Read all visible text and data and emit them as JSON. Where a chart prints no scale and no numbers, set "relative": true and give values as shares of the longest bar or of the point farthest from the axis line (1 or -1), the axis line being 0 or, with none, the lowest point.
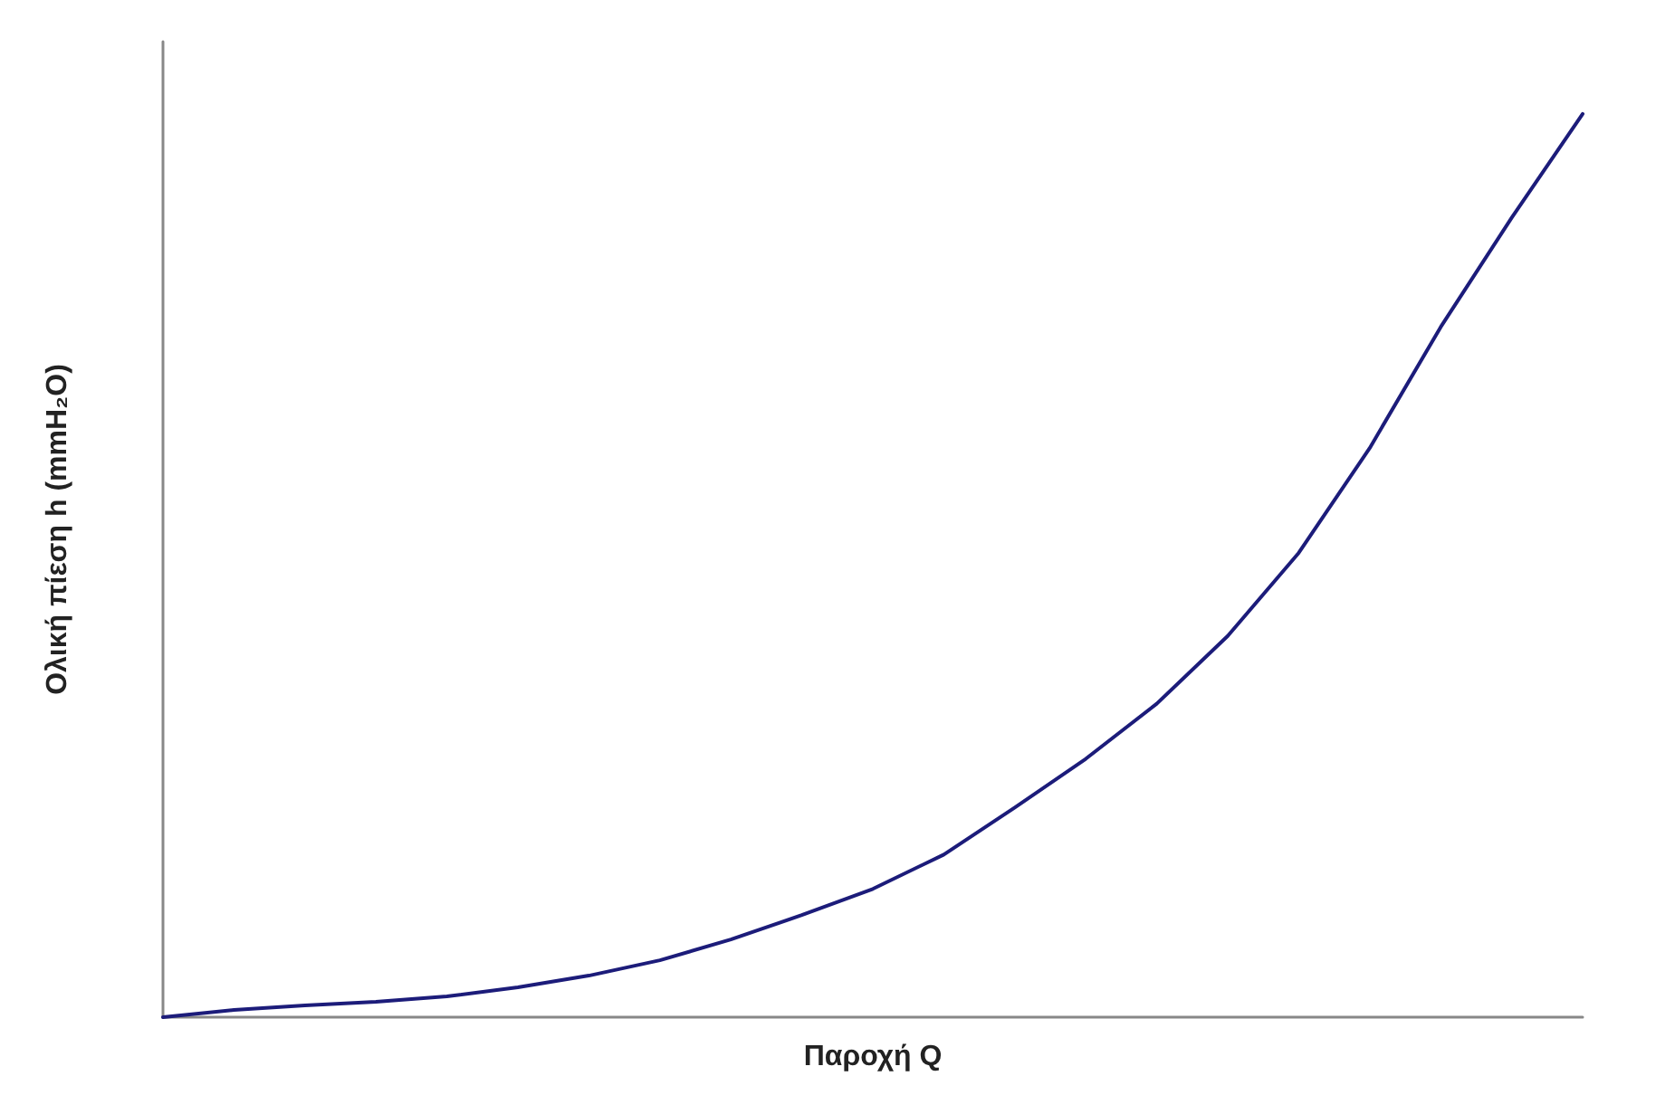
{
  "chart_data": {
    "type": "line",
    "xlabel": "Παροχή Q",
    "ylabel": "Ολική πίεση h (mmH₂O)",
    "relative": true,
    "grid": false,
    "marker": "none",
    "line_style": "solid",
    "categories": [
      null,
      null,
      null,
      null,
      null,
      null,
      null,
      null,
      null,
      null,
      null,
      null,
      null,
      null,
      null,
      null,
      null,
      null,
      null,
      null,
      null
    ],
    "series": [
      {
        "color": "#1c1c7a",
        "values": [
          0,
          0.008,
          0.013,
          0.017,
          0.023,
          0.033,
          0.046,
          0.063,
          0.086,
          0.113,
          0.142,
          0.18,
          0.232,
          0.286,
          0.347,
          0.422,
          0.514,
          0.63,
          0.764,
          0.885,
          1
        ]
      }
    ]
  }
}
